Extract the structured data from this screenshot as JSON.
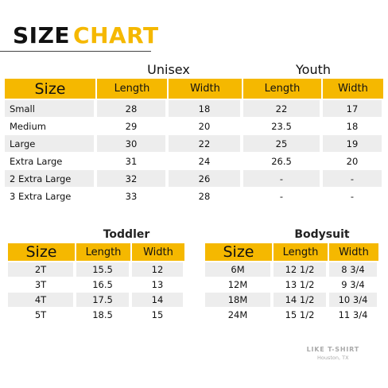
{
  "header": {
    "title_word1": "SIZE",
    "title_word2": "CHART"
  },
  "adult_table": {
    "unisex_label": "Unisex",
    "youth_label": "Youth",
    "columns": [
      "Size",
      "Length",
      "Width",
      "Length",
      "Width"
    ],
    "rows": [
      [
        "Small",
        "28",
        "18",
        "22",
        "17"
      ],
      [
        "Medium",
        "29",
        "20",
        "23.5",
        "18"
      ],
      [
        "Large",
        "30",
        "22",
        "25",
        "19"
      ],
      [
        "Extra Large",
        "31",
        "24",
        "26.5",
        "20"
      ],
      [
        "2 Extra Large",
        "32",
        "26",
        "-",
        "-"
      ],
      [
        "3 Extra Large",
        "33",
        "28",
        "-",
        "-"
      ]
    ]
  },
  "toddler_table": {
    "label": "Toddler",
    "columns": [
      "Size",
      "Length",
      "Width"
    ],
    "rows": [
      [
        "2T",
        "15.5",
        "12"
      ],
      [
        "3T",
        "16.5",
        "13"
      ],
      [
        "4T",
        "17.5",
        "14"
      ],
      [
        "5T",
        "18.5",
        "15"
      ]
    ]
  },
  "bodysuit_table": {
    "label": "Bodysuit",
    "columns": [
      "Size",
      "Length",
      "Width"
    ],
    "rows": [
      [
        "6M",
        "12 1/2",
        "8 3/4"
      ],
      [
        "12M",
        "13 1/2",
        "9 3/4"
      ],
      [
        "18M",
        "14 1/2",
        "10 3/4"
      ],
      [
        "24M",
        "15 1/2",
        "11 3/4"
      ]
    ]
  },
  "brand": {
    "name": "LIKE T-SHIRT",
    "location": "Houston, TX"
  }
}
